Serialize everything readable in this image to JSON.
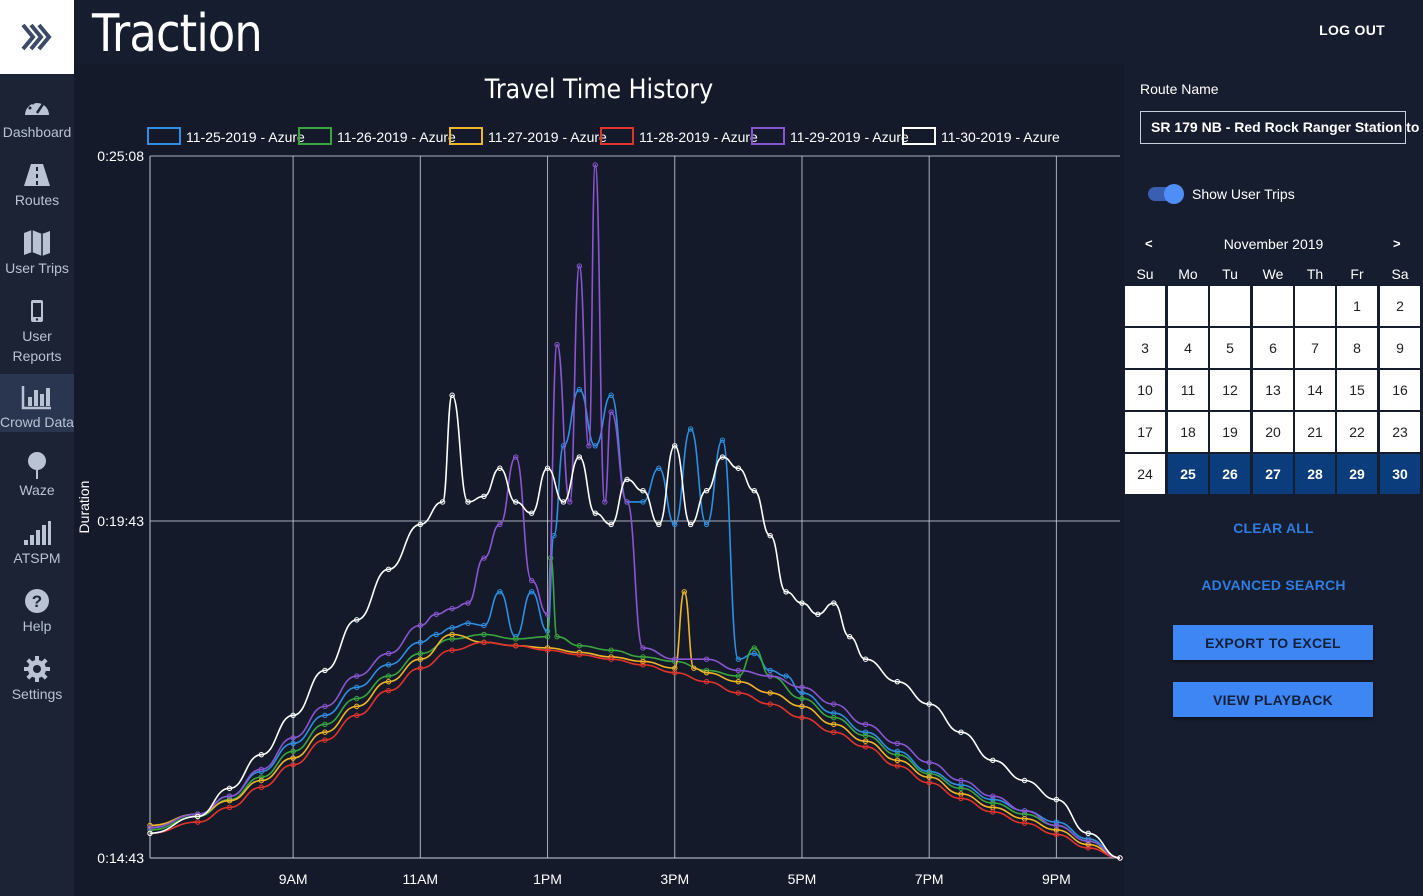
{
  "app": {
    "title": "Traction",
    "logout_label": "LOG OUT"
  },
  "sidebar": {
    "items": [
      {
        "label": "Dashboard",
        "icon": "dashboard-icon"
      },
      {
        "label": "Routes",
        "icon": "road-icon"
      },
      {
        "label": "User Trips",
        "icon": "map-icon"
      },
      {
        "label": "User Reports",
        "icon": "phone-icon"
      },
      {
        "label": "Crowd Data",
        "icon": "bar-chart-icon",
        "active": true
      },
      {
        "label": "Waze",
        "icon": "pin-icon"
      },
      {
        "label": "ATSPM",
        "icon": "signal-icon"
      },
      {
        "label": "Help",
        "icon": "help-icon"
      },
      {
        "label": "Settings",
        "icon": "gear-icon"
      }
    ]
  },
  "panel": {
    "route_label": "Route Name",
    "route_value": "SR 179 NB - Red Rock Ranger Station to",
    "toggle_label": "Show User Trips",
    "toggle_on": true,
    "calendar": {
      "month": "November 2019",
      "prev": "<",
      "next": ">",
      "weekdays": [
        "Su",
        "Mo",
        "Tu",
        "We",
        "Th",
        "Fr",
        "Sa"
      ],
      "leading_blanks": 5,
      "days": 30,
      "selected": [
        25,
        26,
        27,
        28,
        29,
        30
      ]
    },
    "clear_all": "CLEAR ALL",
    "advanced_search": "ADVANCED SEARCH",
    "export": "EXPORT TO EXCEL",
    "playback": "VIEW PLAYBACK"
  },
  "chart_data": {
    "type": "line",
    "title": "Travel Time History",
    "ylabel": "Duration",
    "xlabel": "",
    "x_range_hours": [
      6.75,
      22.0
    ],
    "xticks": [
      {
        "h": 9,
        "label": "9AM"
      },
      {
        "h": 11,
        "label": "11AM"
      },
      {
        "h": 13,
        "label": "1PM"
      },
      {
        "h": 15,
        "label": "3PM"
      },
      {
        "h": 17,
        "label": "5PM"
      },
      {
        "h": 19,
        "label": "7PM"
      },
      {
        "h": 21,
        "label": "9PM"
      }
    ],
    "y_range_sec": [
      883,
      1508
    ],
    "yticks": [
      {
        "s": 883,
        "label": "0:14:43"
      },
      {
        "s": 1183,
        "label": "0:19:43"
      },
      {
        "s": 1508,
        "label": "0:25:08"
      }
    ],
    "grid": true,
    "legend_position": "top",
    "series": [
      {
        "name": "11-25-2019 - Azure",
        "color": "#2f8fe0",
        "points": [
          [
            6.75,
            910
          ],
          [
            7.5,
            922
          ],
          [
            8,
            938
          ],
          [
            8.5,
            960
          ],
          [
            9,
            985
          ],
          [
            9.5,
            1010
          ],
          [
            10,
            1035
          ],
          [
            10.5,
            1055
          ],
          [
            11,
            1075
          ],
          [
            11.25,
            1082
          ],
          [
            11.5,
            1088
          ],
          [
            11.75,
            1092
          ],
          [
            12,
            1090
          ],
          [
            12.25,
            1120
          ],
          [
            12.5,
            1080
          ],
          [
            12.75,
            1120
          ],
          [
            13,
            1085
          ],
          [
            13.1,
            1170
          ],
          [
            13.25,
            1250
          ],
          [
            13.5,
            1300
          ],
          [
            13.75,
            1250
          ],
          [
            14,
            1295
          ],
          [
            14.25,
            1200
          ],
          [
            14.5,
            1200
          ],
          [
            14.75,
            1230
          ],
          [
            15,
            1180
          ],
          [
            15.25,
            1265
          ],
          [
            15.5,
            1180
          ],
          [
            15.75,
            1255
          ],
          [
            16,
            1060
          ],
          [
            16.25,
            1065
          ],
          [
            16.5,
            1050
          ],
          [
            16.75,
            1045
          ],
          [
            17,
            1030
          ],
          [
            17.5,
            1012
          ],
          [
            18,
            995
          ],
          [
            18.5,
            978
          ],
          [
            19,
            960
          ],
          [
            19.5,
            948
          ],
          [
            20,
            935
          ],
          [
            20.5,
            925
          ],
          [
            21,
            915
          ],
          [
            21.5,
            900
          ],
          [
            22,
            883
          ]
        ]
      },
      {
        "name": "11-26-2019 - Azure",
        "color": "#3aa53f",
        "points": [
          [
            6.75,
            908
          ],
          [
            7.5,
            920
          ],
          [
            8,
            935
          ],
          [
            8.5,
            955
          ],
          [
            9,
            978
          ],
          [
            9.5,
            1002
          ],
          [
            10,
            1025
          ],
          [
            10.5,
            1045
          ],
          [
            11,
            1065
          ],
          [
            11.5,
            1078
          ],
          [
            12,
            1082
          ],
          [
            12.5,
            1078
          ],
          [
            13,
            1080
          ],
          [
            13.05,
            1150
          ],
          [
            13.15,
            1080
          ],
          [
            13.5,
            1072
          ],
          [
            14,
            1068
          ],
          [
            14.5,
            1062
          ],
          [
            15,
            1058
          ],
          [
            15.5,
            1050
          ],
          [
            16,
            1045
          ],
          [
            16.25,
            1070
          ],
          [
            16.5,
            1045
          ],
          [
            17,
            1025
          ],
          [
            17.5,
            1008
          ],
          [
            18,
            992
          ],
          [
            18.5,
            975
          ],
          [
            19,
            958
          ],
          [
            19.5,
            945
          ],
          [
            20,
            932
          ],
          [
            20.5,
            922
          ],
          [
            21,
            912
          ],
          [
            21.5,
            898
          ],
          [
            22,
            883
          ]
        ]
      },
      {
        "name": "11-27-2019 - Azure",
        "color": "#f0b429",
        "points": [
          [
            6.75,
            912
          ],
          [
            7.5,
            922
          ],
          [
            8,
            934
          ],
          [
            8.5,
            952
          ],
          [
            9,
            972
          ],
          [
            9.5,
            995
          ],
          [
            10,
            1018
          ],
          [
            10.5,
            1040
          ],
          [
            11,
            1060
          ],
          [
            11.5,
            1082
          ],
          [
            12,
            1075
          ],
          [
            12.5,
            1072
          ],
          [
            13,
            1070
          ],
          [
            13.5,
            1066
          ],
          [
            14,
            1062
          ],
          [
            14.5,
            1058
          ],
          [
            15,
            1052
          ],
          [
            15.15,
            1120
          ],
          [
            15.3,
            1052
          ],
          [
            15.5,
            1048
          ],
          [
            16,
            1040
          ],
          [
            16.5,
            1030
          ],
          [
            17,
            1018
          ],
          [
            17.5,
            1002
          ],
          [
            18,
            987
          ],
          [
            18.5,
            970
          ],
          [
            19,
            955
          ],
          [
            19.5,
            940
          ],
          [
            20,
            928
          ],
          [
            20.5,
            918
          ],
          [
            21,
            908
          ],
          [
            21.5,
            895
          ],
          [
            22,
            883
          ]
        ]
      },
      {
        "name": "11-28-2019 - Azure",
        "color": "#e0342c",
        "points": [
          [
            6.75,
            905
          ],
          [
            7.5,
            915
          ],
          [
            8,
            928
          ],
          [
            8.5,
            946
          ],
          [
            9,
            966
          ],
          [
            9.5,
            988
          ],
          [
            10,
            1010
          ],
          [
            10.5,
            1032
          ],
          [
            11,
            1052
          ],
          [
            11.5,
            1068
          ],
          [
            12,
            1075
          ],
          [
            12.5,
            1072
          ],
          [
            13,
            1068
          ],
          [
            13.5,
            1064
          ],
          [
            14,
            1060
          ],
          [
            14.5,
            1055
          ],
          [
            15,
            1048
          ],
          [
            15.5,
            1040
          ],
          [
            16,
            1030
          ],
          [
            16.5,
            1020
          ],
          [
            17,
            1008
          ],
          [
            17.5,
            995
          ],
          [
            18,
            982
          ],
          [
            18.5,
            965
          ],
          [
            19,
            950
          ],
          [
            19.5,
            936
          ],
          [
            20,
            924
          ],
          [
            20.5,
            914
          ],
          [
            21,
            904
          ],
          [
            21.5,
            892
          ],
          [
            22,
            883
          ]
        ]
      },
      {
        "name": "11-29-2019 - Azure",
        "color": "#8a55d0",
        "points": [
          [
            6.75,
            910
          ],
          [
            7.5,
            922
          ],
          [
            8,
            938
          ],
          [
            8.5,
            962
          ],
          [
            9,
            990
          ],
          [
            9.5,
            1018
          ],
          [
            10,
            1045
          ],
          [
            10.5,
            1065
          ],
          [
            11,
            1090
          ],
          [
            11.25,
            1100
          ],
          [
            11.5,
            1105
          ],
          [
            11.75,
            1110
          ],
          [
            12,
            1150
          ],
          [
            12.25,
            1180
          ],
          [
            12.5,
            1240
          ],
          [
            12.75,
            1130
          ],
          [
            13,
            1100
          ],
          [
            13.15,
            1340
          ],
          [
            13.35,
            1200
          ],
          [
            13.5,
            1410
          ],
          [
            13.65,
            1250
          ],
          [
            13.75,
            1500
          ],
          [
            13.9,
            1200
          ],
          [
            14,
            1280
          ],
          [
            14.25,
            1200
          ],
          [
            14.5,
            1070
          ],
          [
            15,
            1060
          ],
          [
            15.5,
            1060
          ],
          [
            16,
            1050
          ],
          [
            16.5,
            1045
          ],
          [
            17,
            1035
          ],
          [
            17.5,
            1020
          ],
          [
            18,
            1002
          ],
          [
            18.5,
            985
          ],
          [
            19,
            968
          ],
          [
            19.5,
            952
          ],
          [
            20,
            938
          ],
          [
            20.5,
            925
          ],
          [
            21,
            912
          ],
          [
            21.5,
            898
          ],
          [
            22,
            883
          ]
        ]
      },
      {
        "name": "11-30-2019 - Azure",
        "color": "#ffffff",
        "points": [
          [
            6.75,
            905
          ],
          [
            7.5,
            920
          ],
          [
            8,
            945
          ],
          [
            8.5,
            975
          ],
          [
            9,
            1010
          ],
          [
            9.5,
            1050
          ],
          [
            10,
            1095
          ],
          [
            10.5,
            1140
          ],
          [
            11,
            1180
          ],
          [
            11.35,
            1200
          ],
          [
            11.5,
            1295
          ],
          [
            11.75,
            1200
          ],
          [
            12,
            1205
          ],
          [
            12.25,
            1230
          ],
          [
            12.5,
            1200
          ],
          [
            12.75,
            1190
          ],
          [
            13,
            1230
          ],
          [
            13.25,
            1200
          ],
          [
            13.5,
            1240
          ],
          [
            13.75,
            1190
          ],
          [
            14,
            1180
          ],
          [
            14.25,
            1220
          ],
          [
            14.5,
            1210
          ],
          [
            14.75,
            1180
          ],
          [
            15,
            1250
          ],
          [
            15.25,
            1180
          ],
          [
            15.5,
            1210
          ],
          [
            15.75,
            1240
          ],
          [
            16,
            1230
          ],
          [
            16.25,
            1210
          ],
          [
            16.5,
            1170
          ],
          [
            16.75,
            1120
          ],
          [
            17,
            1110
          ],
          [
            17.25,
            1100
          ],
          [
            17.5,
            1110
          ],
          [
            17.75,
            1080
          ],
          [
            18,
            1060
          ],
          [
            18.5,
            1040
          ],
          [
            19,
            1020
          ],
          [
            19.5,
            995
          ],
          [
            20,
            970
          ],
          [
            20.5,
            952
          ],
          [
            21,
            935
          ],
          [
            21.5,
            905
          ],
          [
            22,
            883
          ]
        ]
      }
    ]
  }
}
